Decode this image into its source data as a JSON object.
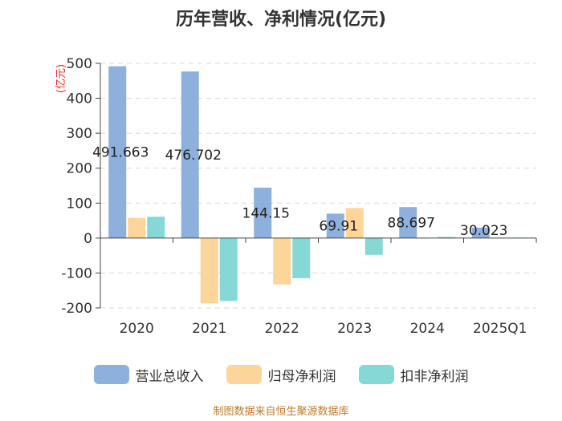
{
  "chart_data": {
    "type": "bar",
    "title": "历年营收、净利情况(亿元)",
    "ylabel": "(亿元)",
    "xlabel": "",
    "categories": [
      "2020",
      "2021",
      "2022",
      "2023",
      "2024",
      "2025Q1"
    ],
    "series": [
      {
        "name": "营业总收入",
        "color": "#8eb0dc",
        "values": [
          491.663,
          476.702,
          144.15,
          69.91,
          88.697,
          30.023
        ]
      },
      {
        "name": "归母净利润",
        "color": "#fcd59a",
        "values": [
          58,
          -187,
          -133,
          86,
          1,
          0
        ]
      },
      {
        "name": "扣非净利润",
        "color": "#86d8d6",
        "values": [
          61,
          -180,
          -115,
          -48,
          3,
          0
        ]
      }
    ],
    "data_labels": [
      "491.663",
      "476.702",
      "144.15",
      "69.91",
      "88.697",
      "30.023"
    ],
    "y_ticks": [
      "500",
      "400",
      "300",
      "200",
      "100",
      "0",
      "-100",
      "-200"
    ],
    "ylim": [
      -200,
      500
    ],
    "grid": true,
    "legend_position": "bottom"
  },
  "source": "制图数据来自恒生聚源数据库"
}
